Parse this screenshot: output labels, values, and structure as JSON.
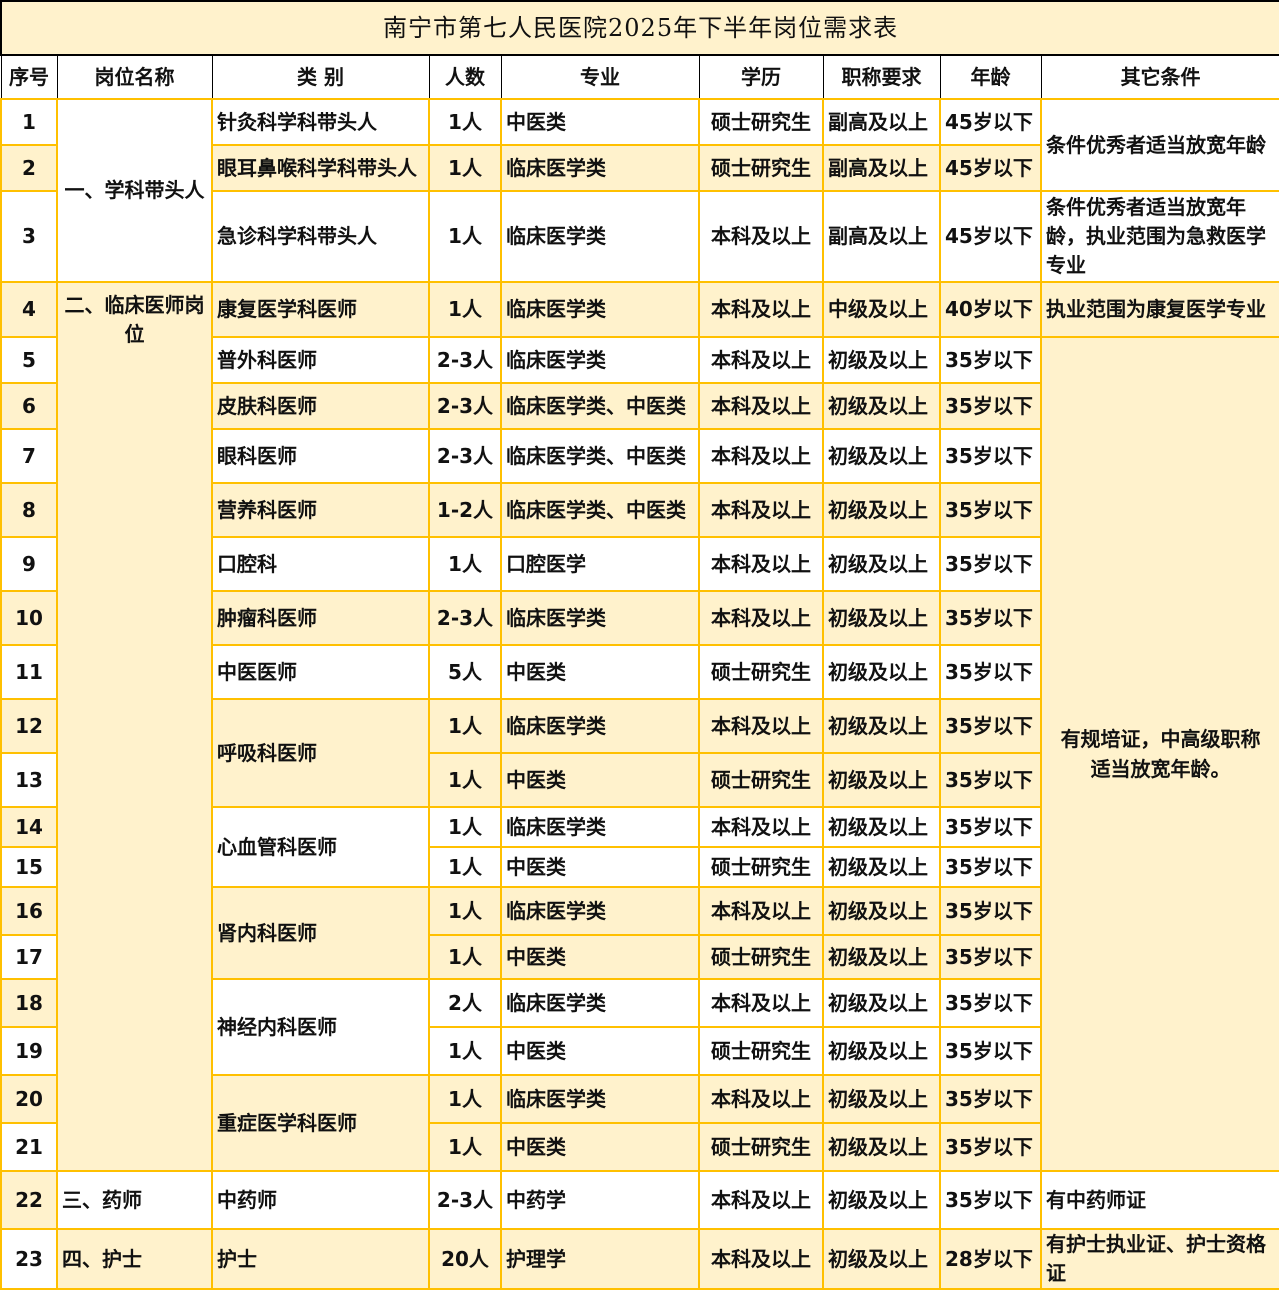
{
  "title": "南宁市第七人民医院2025年下半年岗位需求表",
  "headers": [
    "序号",
    "岗位名称",
    "类 别",
    "人数",
    "专业",
    "学历",
    "职称要求",
    "年龄",
    "其它条件"
  ],
  "colors": {
    "band": "#fff2cc",
    "border": "#ffc000",
    "header_border": "#000000"
  },
  "posts": [
    {
      "label": "一、学科带头人",
      "rows": [
        1,
        3
      ]
    },
    {
      "label": "二、临床医师岗位",
      "rows": [
        4,
        21
      ]
    },
    {
      "label": "三、药师",
      "rows": [
        22,
        22
      ]
    },
    {
      "label": "四、护士",
      "rows": [
        23,
        23
      ]
    }
  ],
  "conditions": [
    {
      "text": "条件优秀者适当放宽年龄",
      "rows": [
        1,
        2
      ]
    },
    {
      "text": "条件优秀者适当放宽年龄，执业范围为急救医学专业",
      "rows": [
        3,
        3
      ]
    },
    {
      "text": "执业范围为康复医学专业",
      "rows": [
        4,
        4
      ]
    },
    {
      "text": "有规培证，中高级职称适当放宽年龄。",
      "rows": [
        5,
        21
      ]
    },
    {
      "text": "有中药师证",
      "rows": [
        22,
        22
      ]
    },
    {
      "text": "有护士执业证、护士资格证",
      "rows": [
        23,
        23
      ]
    }
  ],
  "rows": [
    {
      "seq": "1",
      "category": "针灸科学科带头人",
      "count": "1人",
      "major": "中医类",
      "education": "硕士研究生",
      "title": "副高及以上",
      "age": "45岁以下"
    },
    {
      "seq": "2",
      "category": "眼耳鼻喉科学科带头人",
      "count": "1人",
      "major": "临床医学类",
      "education": "硕士研究生",
      "title": "副高及以上",
      "age": "45岁以下"
    },
    {
      "seq": "3",
      "category": "急诊科学科带头人",
      "count": "1人",
      "major": "临床医学类",
      "education": "本科及以上",
      "title": "副高及以上",
      "age": "45岁以下"
    },
    {
      "seq": "4",
      "category": "康复医学科医师",
      "count": "1人",
      "major": "临床医学类",
      "education": "本科及以上",
      "title": "中级及以上",
      "age": "40岁以下"
    },
    {
      "seq": "5",
      "category": "普外科医师",
      "count": "2-3人",
      "major": "临床医学类",
      "education": "本科及以上",
      "title": "初级及以上",
      "age": "35岁以下"
    },
    {
      "seq": "6",
      "category": "皮肤科医师",
      "count": "2-3人",
      "major": "临床医学类、中医类",
      "education": "本科及以上",
      "title": "初级及以上",
      "age": "35岁以下"
    },
    {
      "seq": "7",
      "category": "眼科医师",
      "count": "2-3人",
      "major": "临床医学类、中医类",
      "education": "本科及以上",
      "title": "初级及以上",
      "age": "35岁以下"
    },
    {
      "seq": "8",
      "category": "营养科医师",
      "count": "1-2人",
      "major": "临床医学类、中医类",
      "education": "本科及以上",
      "title": "初级及以上",
      "age": "35岁以下"
    },
    {
      "seq": "9",
      "category": "口腔科",
      "count": "1人",
      "major": "口腔医学",
      "education": "本科及以上",
      "title": "初级及以上",
      "age": "35岁以下"
    },
    {
      "seq": "10",
      "category": "肿瘤科医师",
      "count": "2-3人",
      "major": "临床医学类",
      "education": "本科及以上",
      "title": "初级及以上",
      "age": "35岁以下"
    },
    {
      "seq": "11",
      "category": "中医医师",
      "count": "5人",
      "major": "中医类",
      "education": "硕士研究生",
      "title": "初级及以上",
      "age": "35岁以下"
    },
    {
      "seq": "12",
      "category": "呼吸科医师",
      "count": "1人",
      "major": "临床医学类",
      "education": "本科及以上",
      "title": "初级及以上",
      "age": "35岁以下"
    },
    {
      "seq": "13",
      "category": "呼吸科医师",
      "count": "1人",
      "major": "中医类",
      "education": "硕士研究生",
      "title": "初级及以上",
      "age": "35岁以下"
    },
    {
      "seq": "14",
      "category": "心血管科医师",
      "count": "1人",
      "major": "临床医学类",
      "education": "本科及以上",
      "title": "初级及以上",
      "age": "35岁以下"
    },
    {
      "seq": "15",
      "category": "心血管科医师",
      "count": "1人",
      "major": "中医类",
      "education": "硕士研究生",
      "title": "初级及以上",
      "age": "35岁以下"
    },
    {
      "seq": "16",
      "category": "肾内科医师",
      "count": "1人",
      "major": "临床医学类",
      "education": "本科及以上",
      "title": "初级及以上",
      "age": "35岁以下"
    },
    {
      "seq": "17",
      "category": "肾内科医师",
      "count": "1人",
      "major": "中医类",
      "education": "硕士研究生",
      "title": "初级及以上",
      "age": "35岁以下"
    },
    {
      "seq": "18",
      "category": "神经内科医师",
      "count": "2人",
      "major": "临床医学类",
      "education": "本科及以上",
      "title": "初级及以上",
      "age": "35岁以下"
    },
    {
      "seq": "19",
      "category": "神经内科医师",
      "count": "1人",
      "major": "中医类",
      "education": "硕士研究生",
      "title": "初级及以上",
      "age": "35岁以下"
    },
    {
      "seq": "20",
      "category": "重症医学科医师",
      "count": "1人",
      "major": "临床医学类",
      "education": "本科及以上",
      "title": "初级及以上",
      "age": "35岁以下"
    },
    {
      "seq": "21",
      "category": "重症医学科医师",
      "count": "1人",
      "major": "中医类",
      "education": "硕士研究生",
      "title": "初级及以上",
      "age": "35岁以下"
    },
    {
      "seq": "22",
      "category": "中药师",
      "count": "2-3人",
      "major": "中药学",
      "education": "本科及以上",
      "title": "初级及以上",
      "age": "35岁以下"
    },
    {
      "seq": "23",
      "category": "护士",
      "count": "20人",
      "major": "护理学",
      "education": "本科及以上",
      "title": "初级及以上",
      "age": "28岁以下"
    }
  ]
}
